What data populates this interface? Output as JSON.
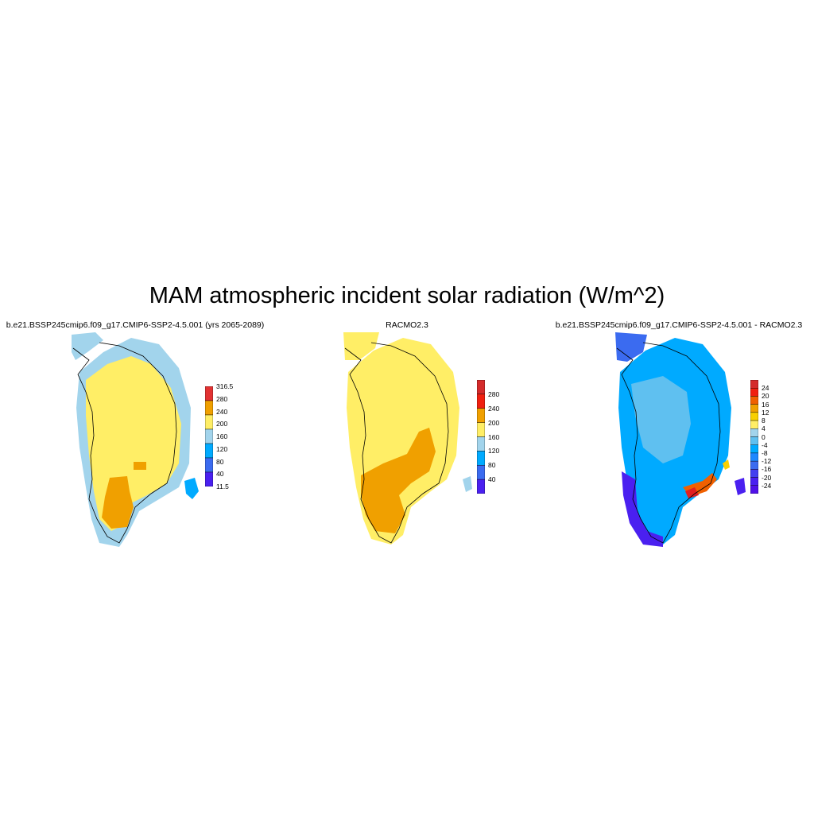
{
  "title": "MAM atmospheric incident solar radiation (W/m^2)",
  "panels": [
    {
      "title": "b.e21.BSSP245cmip6.f09_g17.CMIP6-SSP2-4.5.001 (yrs 2065-2089)",
      "colorbar": {
        "labels": [
          "316.5",
          "280",
          "240",
          "200",
          "160",
          "120",
          "80",
          "40",
          "11.5"
        ],
        "colors": [
          "#e23232",
          "#f0a000",
          "#ffee66",
          "#a2d4ec",
          "#00aaff",
          "#3b6bf0",
          "#4a20f0"
        ]
      }
    },
    {
      "title": "RACMO2.3",
      "colorbar": {
        "labels": [
          "280",
          "240",
          "200",
          "160",
          "120",
          "80",
          "40"
        ],
        "colors": [
          "#d42b2b",
          "#f02010",
          "#f0a000",
          "#ffee66",
          "#a2d4ec",
          "#00aaff",
          "#3b6bf0",
          "#4a20f0"
        ]
      }
    },
    {
      "title": "b.e21.BSSP245cmip6.f09_g17.CMIP6-SSP2-4.5.001 - RACMO2.3",
      "colorbar": {
        "labels": [
          "24",
          "20",
          "16",
          "12",
          "8",
          "4",
          "0",
          "-4",
          "-8",
          "-12",
          "-16",
          "-20",
          "-24"
        ],
        "colors": [
          "#d42b2b",
          "#f02010",
          "#f06000",
          "#f0a000",
          "#f8d000",
          "#ffee66",
          "#a2d4ec",
          "#5fc0f0",
          "#00aaff",
          "#1e88ff",
          "#3b6bf0",
          "#4440f0",
          "#4a20f0",
          "#5010e8"
        ]
      }
    }
  ]
}
